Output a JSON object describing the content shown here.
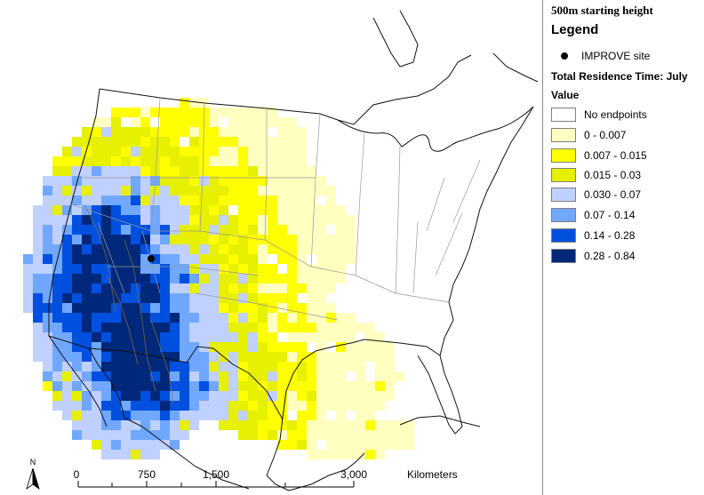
{
  "legend": {
    "height_label": "500m starting height",
    "title": "Legend",
    "site_label": "IMPROVE site",
    "residence_title": "Total Residence Time: July",
    "value_label": "Value",
    "classes": [
      {
        "label": "No endpoints",
        "color": "#ffffff"
      },
      {
        "label": "0 - 0.007",
        "color": "#ffffc0"
      },
      {
        "label": "0.007 - 0.015",
        "color": "#ffff00"
      },
      {
        "label": "0.015 - 0.03",
        "color": "#e6f000"
      },
      {
        "label": "0.030 - 0.07",
        "color": "#c0d0ff"
      },
      {
        "label": "0.07 - 0.14",
        "color": "#70a8ff"
      },
      {
        "label": "0.14 - 0.28",
        "color": "#0050e0"
      },
      {
        "label": "0.28 - 0.84",
        "color": "#00287a"
      }
    ]
  },
  "map": {
    "north_arrow_label": "N",
    "scale_ticks": [
      "0",
      "750",
      "1,500",
      "3,000"
    ],
    "scale_unit": "Kilometers",
    "site_marker": "improve-site-marker"
  }
}
